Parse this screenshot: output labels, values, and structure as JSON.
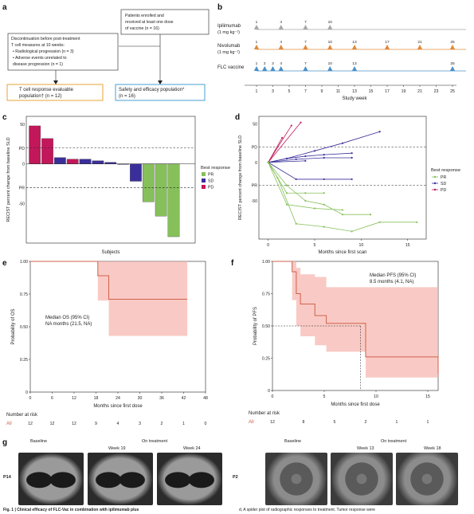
{
  "panels": {
    "a": "a",
    "b": "b",
    "c": "c",
    "d": "d",
    "e": "e",
    "f": "f",
    "g": "g"
  },
  "flow": {
    "enrolled": [
      "Patients enrolled and",
      "received at least one dose",
      "of vaccine (n = 16)"
    ],
    "discontinuation": [
      "Discontinuation before post-treatment",
      "T cell measures at 10 weeks:",
      "• Radiological progression (n = 3)",
      "• Adverse events unrelated to",
      "  disease progression (n = 1)"
    ],
    "tcell": [
      "T cell response evaluable",
      "population† (n = 12)"
    ],
    "safety": [
      "Safety and efficacy population*",
      "(n = 16)"
    ]
  },
  "schedule": {
    "rows": [
      {
        "label1": "Ipilimumab",
        "label2": "(1 mg kg⁻¹)",
        "weeks": [
          1,
          4,
          7,
          10
        ],
        "color": "#a8a8a8"
      },
      {
        "label1": "Nivolumab",
        "label2": "(1 mg kg⁻¹)",
        "weeks": [
          1,
          4,
          7,
          10,
          13,
          17,
          21,
          25
        ],
        "color": "#e08a3c"
      },
      {
        "label1": "FLC vaccine",
        "label2": "",
        "weeks": [
          1,
          2,
          3,
          4,
          7,
          10,
          13,
          25
        ],
        "color": "#4a90c8"
      }
    ],
    "axis_ticks": [
      "1",
      "3",
      "5",
      "7",
      "9",
      "11",
      "13",
      "15",
      "17",
      "19",
      "21",
      "23",
      "25"
    ],
    "xlabel": "Study week"
  },
  "waterfall": {
    "ylabel": "RECIST percent change from baseline SLD",
    "xlabel": "Subjects",
    "legend_title": "Best response",
    "legend": [
      {
        "label": "PR",
        "color": "#86c05a"
      },
      {
        "label": "SD",
        "color": "#3a2f9a"
      },
      {
        "label": "PD",
        "color": "#c2185b"
      }
    ],
    "pd_label": "PD",
    "pr_label": "PR",
    "ticks": [
      "50",
      "0",
      "-50"
    ]
  },
  "spider": {
    "ylabel": "RECIST percent change from baseline SLD",
    "xlabel": "Months since first scan",
    "legend_title": "Best response",
    "legend": [
      {
        "label": "PR",
        "color": "#86c05a"
      },
      {
        "label": "SD",
        "color": "#3a2f9a"
      },
      {
        "label": "PD",
        "color": "#c2185b"
      }
    ],
    "pd_label": "PD",
    "pr_label": "PR",
    "yticks": [
      "50",
      "0",
      "-50"
    ],
    "xticks": [
      "0",
      "5",
      "10",
      "15"
    ]
  },
  "os": {
    "ylabel": "Probability of OS",
    "xlabel": "Months since first dose",
    "annotation": [
      "Median OS (95% CI)",
      "NA months (21.5, NA)"
    ],
    "yticks": [
      "1.00",
      "0.75",
      "0.50",
      "0.25",
      "0"
    ],
    "xticks": [
      "0",
      "6",
      "12",
      "18",
      "24",
      "30",
      "36",
      "42",
      "48"
    ],
    "risk_title": "Number at risk",
    "risk_group": "All",
    "risk": [
      "12",
      "12",
      "12",
      "9",
      "4",
      "3",
      "2",
      "1",
      "0"
    ]
  },
  "pfs": {
    "ylabel": "Probability of PFS",
    "xlabel": "Months since first dose",
    "annotation": [
      "Median PFS (95% CI)",
      "8.5 months (4.1, NA)"
    ],
    "yticks": [
      "1.00",
      "0.75",
      "0.50",
      "0.25",
      "0"
    ],
    "xticks": [
      "0",
      "5",
      "10",
      "15"
    ],
    "risk_title": "Number at risk",
    "risk_group": "All",
    "risk": [
      "12",
      "8",
      "5",
      "2",
      "1",
      "1"
    ]
  },
  "ct": {
    "left_patient": "P14",
    "left_baseline": "Baseline",
    "left_on": "On treatment",
    "left_w1": "Week 19",
    "left_w2": "Week 24",
    "right_patient": "P2",
    "right_baseline": "Baseline",
    "right_on": "On treatment",
    "right_w1": "Week 13",
    "right_w2": "Week 18"
  },
  "caption": {
    "left": "Fig. 1 | Clinical efficacy of FLC-Vac in combination with ipilimumab plus",
    "right": "d, A spider plot of radiographic responses to treatment. Tumor response were"
  },
  "chart_data": [
    {
      "type": "bar",
      "title": "",
      "ylabel": "RECIST percent change from baseline SLD",
      "xlabel": "Subjects",
      "categories": [
        "1",
        "2",
        "3",
        "4",
        "5",
        "6",
        "7",
        "8",
        "9",
        "10",
        "11",
        "12",
        "13"
      ],
      "values": [
        48,
        32,
        8,
        6,
        6,
        4,
        2,
        0,
        -22,
        -48,
        -66,
        -92,
        0
      ],
      "response": [
        "PD",
        "PD",
        "SD",
        "PD",
        "SD",
        "SD",
        "SD",
        "SD",
        "SD",
        "PR",
        "PR",
        "PR",
        ""
      ],
      "reference_lines": {
        "PD": 20,
        "PR": -30
      },
      "ylim": [
        -100,
        60
      ],
      "legend_placement": "right"
    },
    {
      "type": "line",
      "title": "",
      "xlabel": "Months since first scan",
      "ylabel": "RECIST percent change from baseline SLD",
      "xlim": [
        -1,
        17
      ],
      "ylim": [
        -100,
        60
      ],
      "reference_lines": {
        "PD": 20,
        "PR": -30
      },
      "series": [
        {
          "name": "PD",
          "x": [
            0,
            2.5
          ],
          "y": [
            0,
            48
          ]
        },
        {
          "name": "PD",
          "x": [
            0,
            3.5
          ],
          "y": [
            0,
            52
          ]
        },
        {
          "name": "PD",
          "x": [
            0,
            1.5
          ],
          "y": [
            0,
            32
          ]
        },
        {
          "name": "SD",
          "x": [
            0,
            2,
            4,
            6,
            9
          ],
          "y": [
            0,
            5,
            8,
            10,
            12
          ]
        },
        {
          "name": "SD",
          "x": [
            0,
            2,
            5,
            8,
            12
          ],
          "y": [
            0,
            5,
            15,
            25,
            40
          ]
        },
        {
          "name": "SD",
          "x": [
            0,
            3,
            6,
            9
          ],
          "y": [
            0,
            -22,
            -22,
            -22
          ]
        },
        {
          "name": "SD",
          "x": [
            0,
            3,
            6,
            9
          ],
          "y": [
            0,
            4,
            6,
            6
          ]
        },
        {
          "name": "SD",
          "x": [
            0,
            4
          ],
          "y": [
            0,
            2
          ]
        },
        {
          "name": "PR",
          "x": [
            0,
            2,
            4,
            6,
            8,
            11
          ],
          "y": [
            0,
            -30,
            -50,
            -55,
            -68,
            -68
          ]
        },
        {
          "name": "PR",
          "x": [
            0,
            2,
            4,
            6
          ],
          "y": [
            0,
            -40,
            -40,
            -40
          ]
        },
        {
          "name": "PR",
          "x": [
            0,
            1,
            3,
            6,
            9,
            12,
            16
          ],
          "y": [
            0,
            -20,
            -80,
            -84,
            -90,
            -78,
            -78
          ]
        },
        {
          "name": "PR",
          "x": [
            0,
            2,
            5,
            8
          ],
          "y": [
            0,
            -55,
            -60,
            -62
          ]
        }
      ],
      "legend_placement": "right"
    },
    {
      "type": "line",
      "title": "",
      "xlabel": "Months since first dose",
      "ylabel": "Probability of OS",
      "xlim": [
        0,
        48
      ],
      "ylim": [
        0,
        1
      ],
      "series": [
        {
          "name": "All",
          "x": [
            0,
            18,
            18.5,
            21.5,
            43
          ],
          "y": [
            1.0,
            1.0,
            0.89,
            0.71,
            0.71
          ]
        }
      ],
      "ci_upper": [
        1.0,
        1.0,
        1.0,
        1.0,
        1.0
      ],
      "ci_lower": [
        1.0,
        1.0,
        0.7,
        0.43,
        0.43
      ]
    },
    {
      "type": "line",
      "title": "",
      "xlabel": "Months since first dose",
      "ylabel": "Probability of PFS",
      "xlim": [
        0,
        16
      ],
      "ylim": [
        0,
        1
      ],
      "series": [
        {
          "name": "All",
          "x": [
            0,
            1.9,
            2.3,
            2.7,
            4.1,
            5.2,
            8.5,
            9.0,
            16
          ],
          "y": [
            1.0,
            0.92,
            0.75,
            0.67,
            0.58,
            0.52,
            0.52,
            0.26,
            0.13
          ]
        }
      ],
      "ci_upper": [
        1.0,
        1.0,
        0.95,
        0.9,
        0.88,
        0.8,
        0.8,
        0.8,
        0.8
      ],
      "ci_lower": [
        1.0,
        0.7,
        0.5,
        0.42,
        0.35,
        0.3,
        0.3,
        0.1,
        0.0
      ]
    }
  ]
}
